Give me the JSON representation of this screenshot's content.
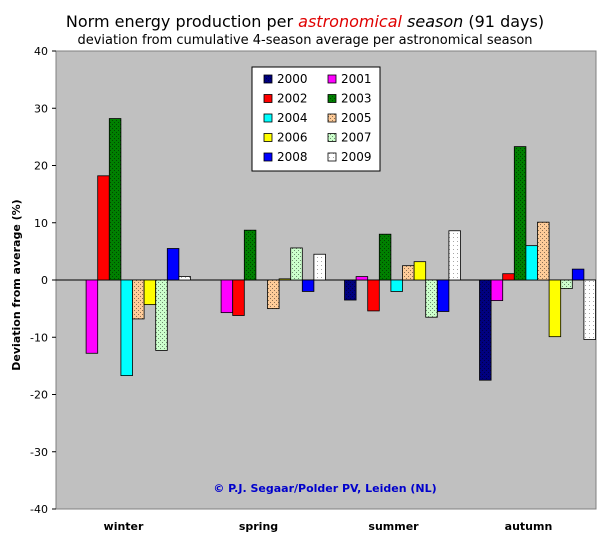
{
  "title": {
    "part1": "Norm energy production per ",
    "highlight": "astronomical",
    "part2": " season",
    "part3": " (91 days)"
  },
  "subtitle": "deviation from cumulative 4-season average per astronomical season",
  "credit": "© P.J. Segaar/Polder PV, Leiden (NL)",
  "credit_color": "#0000cc",
  "plot_background": "#c0c0c0",
  "chart_data": {
    "type": "bar",
    "title": "Norm energy production per astronomical season (91 days)",
    "subtitle": "deviation from cumulative 4-season average per astronomical season",
    "xlabel": "",
    "ylabel": "Deviation from average (%)",
    "ylim": [
      -40,
      40
    ],
    "yticks": [
      -40,
      -30,
      -20,
      -10,
      0,
      10,
      20,
      30,
      40
    ],
    "grid": false,
    "legend_position": "top-center",
    "categories": [
      "winter",
      "spring",
      "summer",
      "autumn"
    ],
    "series": [
      {
        "name": "2000",
        "color": "#000080",
        "pattern": "check",
        "values": [
          null,
          null,
          -3.5,
          -17.5
        ]
      },
      {
        "name": "2001",
        "color": "#ff00ff",
        "pattern": "solid",
        "values": [
          -12.8,
          -5.7,
          0.6,
          -3.6
        ]
      },
      {
        "name": "2002",
        "color": "#ff0000",
        "pattern": "solid",
        "values": [
          18.2,
          -6.2,
          -5.4,
          1.1
        ]
      },
      {
        "name": "2003",
        "color": "#008000",
        "pattern": "check",
        "values": [
          28.2,
          8.7,
          8.0,
          23.3
        ]
      },
      {
        "name": "2004",
        "color": "#00ffff",
        "pattern": "solid",
        "values": [
          -16.7,
          null,
          -2.0,
          6.0
        ]
      },
      {
        "name": "2005",
        "color": "#ffcc99",
        "pattern": "check",
        "values": [
          -6.8,
          -5.0,
          2.5,
          10.1
        ]
      },
      {
        "name": "2006",
        "color": "#ffff00",
        "pattern": "solid",
        "values": [
          -4.3,
          0.2,
          3.2,
          -9.9
        ]
      },
      {
        "name": "2007",
        "color": "#ccffcc",
        "pattern": "check",
        "values": [
          -12.3,
          5.6,
          -6.5,
          -1.5
        ]
      },
      {
        "name": "2008",
        "color": "#0000ff",
        "pattern": "solid",
        "values": [
          5.5,
          -2.0,
          -5.5,
          1.9
        ]
      },
      {
        "name": "2009",
        "color": "#ffffff",
        "pattern": "dots",
        "values": [
          0.6,
          4.5,
          8.6,
          -10.4
        ]
      }
    ]
  }
}
